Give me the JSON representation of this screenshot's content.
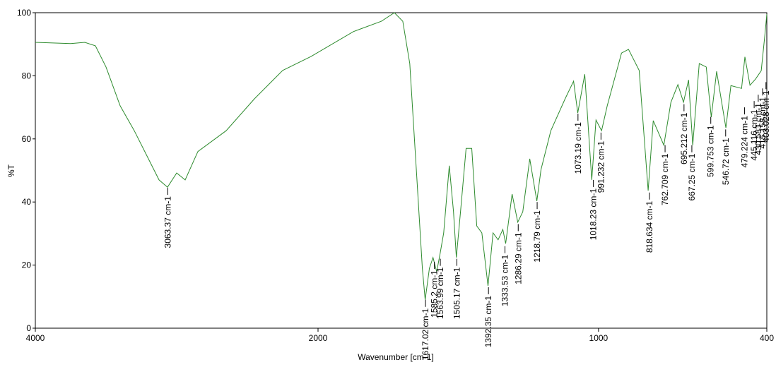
{
  "chart_data": {
    "type": "line",
    "xlabel": "Wavenumber [cm-1]",
    "ylabel": "%T",
    "xlim": [
      4000,
      400
    ],
    "x_break": 2000,
    "xticks": [
      4000,
      2000,
      1000,
      400
    ],
    "ylim": [
      0,
      100
    ],
    "yticks": [
      0,
      20,
      40,
      60,
      80,
      100
    ],
    "series": [
      {
        "name": "spectrum",
        "color": "#2e8b2e",
        "x": [
          4000,
          3750,
          3650,
          3575,
          3500,
          3400,
          3300,
          3200,
          3125,
          3065,
          3000,
          2940,
          2850,
          2650,
          2450,
          2250,
          2050,
          1874,
          1774,
          1728,
          1698,
          1673,
          1648,
          1628,
          1618,
          1603,
          1590,
          1577,
          1565,
          1552,
          1532,
          1517,
          1507,
          1492,
          1472,
          1452,
          1434,
          1416,
          1394,
          1376,
          1358,
          1341,
          1331,
          1308,
          1288,
          1270,
          1245,
          1220,
          1205,
          1170,
          1119,
          1089,
          1074,
          1049,
          1024,
          1009,
          989,
          969,
          918,
          893,
          855,
          823,
          805,
          767,
          742,
          717,
          697,
          679,
          664,
          641,
          616,
          598,
          579,
          546,
          528,
          490,
          478,
          460,
          440,
          420,
          407,
          400
        ],
        "values": [
          90.6,
          90.2,
          90.6,
          89.5,
          82.8,
          70.5,
          62.6,
          53.7,
          47,
          44.7,
          49.2,
          47,
          56,
          62.6,
          72.7,
          81.7,
          86.1,
          94,
          97.3,
          100,
          97.3,
          83.9,
          48,
          19,
          9,
          19,
          22.4,
          17.9,
          23.5,
          30.2,
          51.5,
          36.9,
          22.4,
          36.9,
          57,
          57,
          32.4,
          30.2,
          13.4,
          30.2,
          28,
          31.3,
          26.8,
          42.5,
          33.6,
          36.9,
          53.7,
          40.3,
          50.3,
          62.6,
          72.7,
          78.3,
          68.2,
          80.5,
          47,
          66,
          62.6,
          70.5,
          87.2,
          88.4,
          81.7,
          43.6,
          65.8,
          58,
          71.6,
          77.2,
          71.6,
          78.7,
          58,
          83.9,
          82.8,
          66.9,
          81.4,
          63.5,
          76.9,
          76,
          86,
          77,
          79,
          81.6,
          92.8,
          99.5
        ]
      }
    ],
    "peaks": [
      {
        "label": "3063.37 cm-1",
        "x": 3063.37,
        "y": 44.5
      },
      {
        "label": "1617.02 cm-1",
        "x": 1617.02,
        "y": 9
      },
      {
        "label": "1585.2 cm-1",
        "x": 1585.2,
        "y": 21
      },
      {
        "label": "1563.99 cm-1",
        "x": 1563.99,
        "y": 22
      },
      {
        "label": "1505.17 cm-1",
        "x": 1505.17,
        "y": 22
      },
      {
        "label": "1392.35 cm-1",
        "x": 1392.35,
        "y": 13
      },
      {
        "label": "1333.53 cm-1",
        "x": 1333.53,
        "y": 26
      },
      {
        "label": "1286.29 cm-1",
        "x": 1286.29,
        "y": 33
      },
      {
        "label": "1218.79 cm-1",
        "x": 1218.79,
        "y": 40
      },
      {
        "label": "1073.19 cm-1",
        "x": 1073.19,
        "y": 68
      },
      {
        "label": "1018.23 cm-1",
        "x": 1018.23,
        "y": 47
      },
      {
        "label": "991.232 cm-1",
        "x": 991.232,
        "y": 62
      },
      {
        "label": "818.634 cm-1",
        "x": 818.634,
        "y": 43
      },
      {
        "label": "762.709 cm-1",
        "x": 762.709,
        "y": 58
      },
      {
        "label": "695.212 cm-1",
        "x": 695.212,
        "y": 71
      },
      {
        "label": "667.25 cm-1",
        "x": 667.25,
        "y": 58
      },
      {
        "label": "599.753 cm-1",
        "x": 599.753,
        "y": 67
      },
      {
        "label": "546.72 cm-1",
        "x": 546.72,
        "y": 63
      },
      {
        "label": "479.224 cm-1",
        "x": 479.224,
        "y": 70
      },
      {
        "label": "445.116 cm-1",
        "x": 445.116,
        "y": 72
      },
      {
        "label": "430.583 cm-1",
        "x": 430.583,
        "y": 74
      },
      {
        "label": "415.158 cm-1",
        "x": 415.158,
        "y": 76
      },
      {
        "label": "403.028 cm-1",
        "x": 403.028,
        "y": 78
      }
    ]
  }
}
